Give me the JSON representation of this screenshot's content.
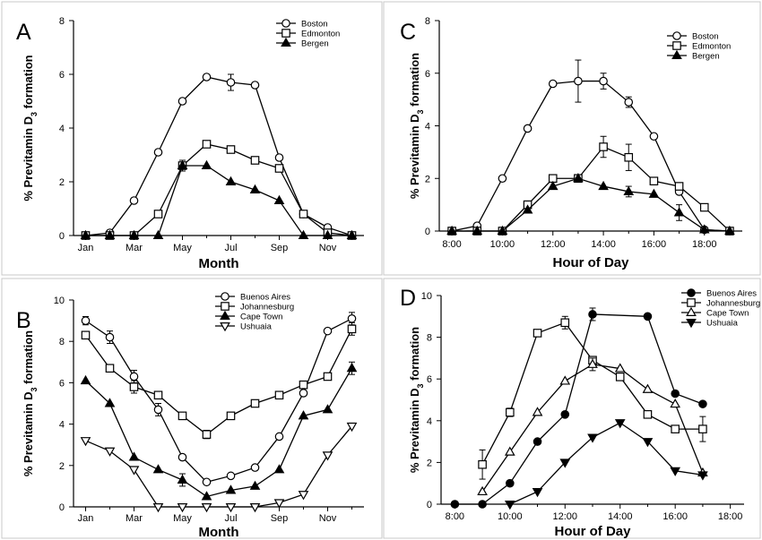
{
  "chart_data": [
    {
      "type": "line",
      "panel_label": "A",
      "xlabel": "Month",
      "ylabel_main": "% Previtamin D",
      "ylabel_sub": "3",
      "ylabel_tail": " formation",
      "xlim": [
        0.5,
        12.5
      ],
      "ylim": [
        0,
        8
      ],
      "yticks": [
        0,
        2,
        4,
        6,
        8
      ],
      "xticks": [
        {
          "x": 1,
          "label": "Jan"
        },
        {
          "x": 3,
          "label": "Mar"
        },
        {
          "x": 5,
          "label": "May"
        },
        {
          "x": 7,
          "label": "Jul"
        },
        {
          "x": 9,
          "label": "Sep"
        },
        {
          "x": 11,
          "label": "Nov"
        }
      ],
      "legend_position": "top-right",
      "series": [
        {
          "name": "Boston",
          "marker": "circle-open",
          "x": [
            1,
            2,
            3,
            4,
            5,
            6,
            7,
            8,
            9,
            10,
            11,
            12
          ],
          "y": [
            0,
            0.1,
            1.3,
            3.1,
            5.0,
            5.9,
            5.7,
            5.6,
            2.9,
            0.8,
            0.3,
            0
          ],
          "err": [
            0,
            0,
            0,
            0,
            0,
            0,
            0.3,
            0,
            0,
            0,
            0,
            0
          ]
        },
        {
          "name": "Edmonton",
          "marker": "square-open",
          "x": [
            1,
            2,
            3,
            4,
            5,
            6,
            7,
            8,
            9,
            10,
            11,
            12
          ],
          "y": [
            0,
            0,
            0,
            0.8,
            2.6,
            3.4,
            3.2,
            2.8,
            2.5,
            0.8,
            0.1,
            0
          ],
          "err": [
            0,
            0,
            0,
            0,
            0,
            0,
            0,
            0,
            0,
            0,
            0,
            0
          ]
        },
        {
          "name": "Bergen",
          "marker": "triangle-filled",
          "x": [
            1,
            2,
            3,
            4,
            5,
            6,
            7,
            8,
            9,
            10,
            11,
            12
          ],
          "y": [
            0,
            0,
            0,
            0,
            2.6,
            2.6,
            2.0,
            1.7,
            1.3,
            0,
            0,
            0
          ],
          "err": [
            0,
            0,
            0,
            0,
            0.2,
            0,
            0,
            0,
            0,
            0,
            0,
            0
          ]
        }
      ]
    },
    {
      "type": "line",
      "panel_label": "B",
      "xlabel": "Month",
      "ylabel_main": "% Previtamin D",
      "ylabel_sub": "3",
      "ylabel_tail": " formation",
      "xlim": [
        0.5,
        12.5
      ],
      "ylim": [
        0,
        10
      ],
      "yticks": [
        0,
        2,
        4,
        6,
        8,
        10
      ],
      "xticks": [
        {
          "x": 1,
          "label": "Jan"
        },
        {
          "x": 3,
          "label": "Mar"
        },
        {
          "x": 5,
          "label": "May"
        },
        {
          "x": 7,
          "label": "Jul"
        },
        {
          "x": 9,
          "label": "Sep"
        },
        {
          "x": 11,
          "label": "Nov"
        }
      ],
      "legend_position": "top-right",
      "series": [
        {
          "name": "Buenos Aires",
          "marker": "circle-open",
          "x": [
            1,
            2,
            3,
            4,
            5,
            6,
            7,
            8,
            9,
            10,
            11,
            12
          ],
          "y": [
            9.0,
            8.2,
            6.3,
            4.7,
            2.4,
            1.2,
            1.5,
            1.9,
            3.4,
            5.5,
            8.5,
            9.1
          ],
          "err": [
            0.2,
            0.3,
            0.3,
            0.3,
            0,
            0,
            0,
            0,
            0,
            0,
            0,
            0.3
          ]
        },
        {
          "name": "Johannesburg",
          "marker": "square-open",
          "x": [
            1,
            2,
            3,
            4,
            5,
            6,
            7,
            8,
            9,
            10,
            11,
            12
          ],
          "y": [
            8.3,
            6.7,
            5.8,
            5.4,
            4.4,
            3.5,
            4.4,
            5.0,
            5.4,
            5.9,
            6.3,
            8.6
          ],
          "err": [
            0,
            0,
            0.3,
            0,
            0,
            0.2,
            0,
            0,
            0,
            0,
            0,
            0.3
          ]
        },
        {
          "name": "Cape Town",
          "marker": "triangle-filled",
          "x": [
            1,
            2,
            3,
            4,
            5,
            6,
            7,
            8,
            9,
            10,
            11,
            12
          ],
          "y": [
            6.1,
            5.0,
            2.4,
            1.8,
            1.3,
            0.5,
            0.8,
            1.0,
            1.8,
            4.4,
            4.7,
            6.7
          ],
          "err": [
            0,
            0,
            0,
            0,
            0.3,
            0,
            0,
            0,
            0,
            0,
            0,
            0.3
          ]
        },
        {
          "name": "Ushuaia",
          "marker": "triangle-down-open",
          "x": [
            1,
            2,
            3,
            4,
            5,
            6,
            7,
            8,
            9,
            10,
            11,
            12
          ],
          "y": [
            3.2,
            2.7,
            1.8,
            0,
            0,
            0,
            0,
            0,
            0.2,
            0.6,
            2.5,
            3.9
          ],
          "err": [
            0,
            0,
            0,
            0,
            0,
            0,
            0,
            0,
            0,
            0,
            0,
            0
          ]
        }
      ]
    },
    {
      "type": "line",
      "panel_label": "C",
      "xlabel": "Hour of Day",
      "ylabel_main": "% Previtamin D",
      "ylabel_sub": "3",
      "ylabel_tail": " formation",
      "xlim": [
        7.5,
        19.5
      ],
      "ylim": [
        0,
        8
      ],
      "yticks": [
        0,
        2,
        4,
        6,
        8
      ],
      "xticks": [
        {
          "x": 8,
          "label": "8:00"
        },
        {
          "x": 10,
          "label": "10:00"
        },
        {
          "x": 12,
          "label": "12:00"
        },
        {
          "x": 14,
          "label": "14:00"
        },
        {
          "x": 16,
          "label": "16:00"
        },
        {
          "x": 18,
          "label": "18:00"
        }
      ],
      "legend_position": "top-right",
      "series": [
        {
          "name": "Boston",
          "marker": "circle-open",
          "x": [
            8,
            9,
            10,
            11,
            12,
            13,
            14,
            15,
            16,
            17,
            18,
            19
          ],
          "y": [
            0,
            0.2,
            2.0,
            3.9,
            5.6,
            5.7,
            5.7,
            4.9,
            3.6,
            1.5,
            0.05,
            0
          ],
          "err": [
            0,
            0,
            0,
            0,
            0,
            0.8,
            0.3,
            0.2,
            0,
            0,
            0,
            0
          ]
        },
        {
          "name": "Edmonton",
          "marker": "square-open",
          "x": [
            8,
            9,
            10,
            11,
            12,
            13,
            14,
            15,
            16,
            17,
            18,
            19
          ],
          "y": [
            0,
            0,
            0,
            1.0,
            2.0,
            2.0,
            3.2,
            2.8,
            1.9,
            1.7,
            0.9,
            0
          ],
          "err": [
            0,
            0,
            0,
            0,
            0,
            0,
            0.4,
            0.5,
            0,
            0,
            0,
            0
          ]
        },
        {
          "name": "Bergen",
          "marker": "triangle-filled",
          "x": [
            8,
            9,
            10,
            11,
            12,
            13,
            14,
            15,
            16,
            17,
            18,
            19
          ],
          "y": [
            0,
            0,
            0,
            0.8,
            1.7,
            2.0,
            1.7,
            1.5,
            1.4,
            0.7,
            0.05,
            0
          ],
          "err": [
            0,
            0,
            0,
            0,
            0,
            0,
            0,
            0.2,
            0,
            0.3,
            0,
            0
          ]
        }
      ]
    },
    {
      "type": "line",
      "panel_label": "D",
      "xlabel": "Hour of Day",
      "ylabel_main": "% Previtamin D",
      "ylabel_sub": "3",
      "ylabel_tail": " formation",
      "xlim": [
        7.5,
        18.5
      ],
      "ylim": [
        0,
        10
      ],
      "yticks": [
        0,
        2,
        4,
        6,
        8,
        10
      ],
      "xticks": [
        {
          "x": 8,
          "label": "8:00"
        },
        {
          "x": 10,
          "label": "10:00"
        },
        {
          "x": 12,
          "label": "12:00"
        },
        {
          "x": 14,
          "label": "14:00"
        },
        {
          "x": 16,
          "label": "16:00"
        },
        {
          "x": 18,
          "label": "18:00"
        }
      ],
      "legend_position": "top-right",
      "series": [
        {
          "name": "Buenos Aires",
          "marker": "circle-filled",
          "x": [
            8,
            9,
            10,
            11,
            12,
            13,
            15,
            16,
            17
          ],
          "y": [
            0,
            0,
            1.0,
            3.0,
            4.3,
            9.1,
            9.0,
            5.3,
            4.8
          ],
          "err": [
            0,
            0,
            0,
            0,
            0,
            0.3,
            0,
            0,
            0
          ]
        },
        {
          "name": "Johannesburg",
          "marker": "square-open",
          "x": [
            9,
            10,
            11,
            12,
            13,
            14,
            15,
            16,
            17
          ],
          "y": [
            1.9,
            4.4,
            8.2,
            8.7,
            6.9,
            6.1,
            4.3,
            3.6,
            3.6
          ],
          "err": [
            0.7,
            0.2,
            0,
            0.3,
            0,
            0,
            0,
            0,
            0.6
          ]
        },
        {
          "name": "Cape Town",
          "marker": "triangle-open",
          "x": [
            9,
            10,
            11,
            12,
            13,
            14,
            15,
            16,
            17
          ],
          "y": [
            0.6,
            2.5,
            4.4,
            5.9,
            6.7,
            6.5,
            5.5,
            4.8,
            1.5
          ],
          "err": [
            0,
            0,
            0,
            0,
            0.3,
            0,
            0,
            0,
            0
          ]
        },
        {
          "name": "Ushuaia",
          "marker": "triangle-down-filled",
          "x": [
            10,
            11,
            12,
            13,
            14,
            15,
            16,
            17
          ],
          "y": [
            0,
            0.6,
            2.0,
            3.2,
            3.9,
            3.0,
            1.6,
            1.4
          ],
          "err": [
            0,
            0,
            0,
            0,
            0,
            0,
            0,
            0
          ]
        }
      ]
    }
  ]
}
